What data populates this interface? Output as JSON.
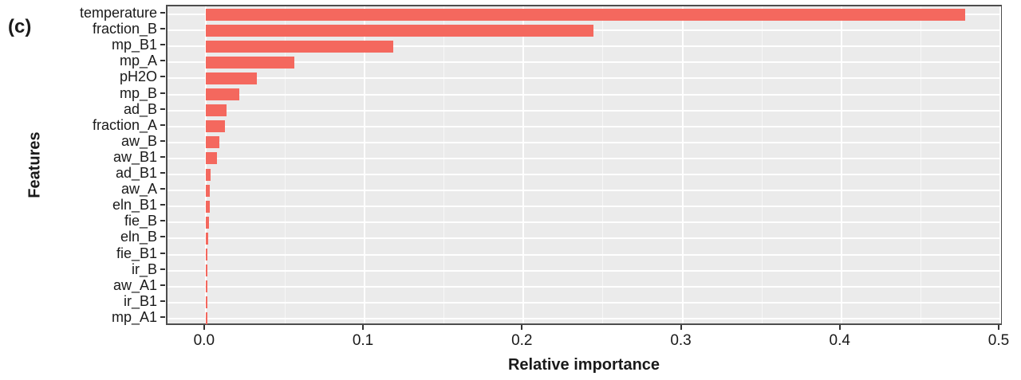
{
  "panel_tag": "(c)",
  "chart_data": {
    "type": "bar",
    "orientation": "horizontal",
    "title": "",
    "xlabel": "Relative importance",
    "ylabel": "Features",
    "xlim": [
      -0.024,
      0.502
    ],
    "x_major_ticks": [
      0.0,
      0.1,
      0.2,
      0.3,
      0.4,
      0.5
    ],
    "x_major_tick_labels": [
      "0.0",
      "0.1",
      "0.2",
      "0.3",
      "0.4",
      "0.5"
    ],
    "x_minor_ticks": [
      0.05,
      0.15,
      0.25,
      0.35,
      0.45
    ],
    "grid": "on",
    "legend": "none",
    "categories": [
      "temperature",
      "fraction_B",
      "mp_B1",
      "mp_A",
      "pH2O",
      "mp_B",
      "ad_B",
      "fraction_A",
      "aw_B",
      "aw_B1",
      "ad_B1",
      "aw_A",
      "eln_B1",
      "fie_B",
      "eln_B",
      "fie_B1",
      "ir_B",
      "aw_A1",
      "ir_B1",
      "mp_A1"
    ],
    "values": [
      0.478,
      0.244,
      0.118,
      0.056,
      0.032,
      0.021,
      0.013,
      0.012,
      0.0085,
      0.007,
      0.003,
      0.0026,
      0.0024,
      0.0019,
      0.0017,
      0.0012,
      0.001,
      0.0009,
      0.0007,
      0.0005
    ]
  },
  "colors": {
    "bar": "#f4685e",
    "panel_background": "#ebebeb",
    "grid_major": "#ffffff",
    "grid_minor": "#f7f7f7",
    "panel_border": "#4d4d4d",
    "text": "#1a1a1a"
  }
}
